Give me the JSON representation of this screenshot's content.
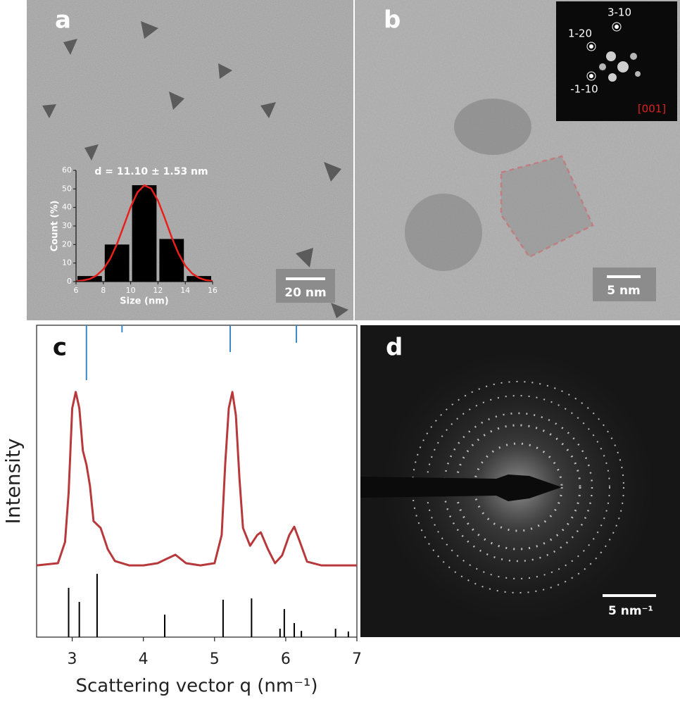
{
  "panels": {
    "a": {
      "label": "a",
      "scale_bar": "20 nm"
    },
    "b": {
      "label": "b",
      "scale_bar": "5 nm",
      "fft_labels": [
        "3-10",
        "1-20",
        "-1-10"
      ],
      "zone_axis": "[001]"
    },
    "c": {
      "label": "c"
    },
    "d": {
      "label": "d",
      "scale_bar": "5 nm⁻¹"
    }
  },
  "chart_data": [
    {
      "type": "histogram",
      "title": "d = 11.10 ± 1.53 nm",
      "x_label": "Size (nm)",
      "y_label": "Count (%)",
      "bins": [
        6,
        8,
        10,
        12,
        14,
        16
      ],
      "values": [
        3,
        20,
        52,
        23,
        3
      ],
      "color": "#000000",
      "xlim": [
        6,
        16
      ],
      "xticks": [
        6,
        8,
        10,
        12,
        14,
        16
      ],
      "ylim": [
        0,
        60
      ],
      "yticks": [
        0,
        10,
        20,
        30,
        40,
        50,
        60
      ],
      "fit": {
        "color": "#e8201c",
        "x": [
          6,
          6.5,
          7,
          7.5,
          8,
          8.5,
          9,
          9.5,
          10,
          10.5,
          11,
          11.5,
          12,
          12.5,
          13,
          13.5,
          14,
          14.5,
          15,
          15.5,
          16
        ],
        "values": [
          0.2,
          0.6,
          1.4,
          3.3,
          6.7,
          12.3,
          20.3,
          30.1,
          40.2,
          48.2,
          51.9,
          50.2,
          43.7,
          34.2,
          24.0,
          15.2,
          8.6,
          4.4,
          2.0,
          0.8,
          0.3
        ]
      }
    },
    {
      "type": "line",
      "x_label": "Scattering vector q (nm⁻¹)",
      "y_label": "Intensity",
      "xlim": [
        2.5,
        7
      ],
      "xticks": [
        3,
        4,
        5,
        6,
        7
      ],
      "ylim": [
        0,
        100
      ],
      "series": [
        {
          "color": "#b8393b",
          "x": [
            2.5,
            2.8,
            2.9,
            2.95,
            3.0,
            3.05,
            3.1,
            3.15,
            3.2,
            3.25,
            3.3,
            3.4,
            3.5,
            3.6,
            3.8,
            4.0,
            4.2,
            4.3,
            4.45,
            4.6,
            4.8,
            5.0,
            5.1,
            5.15,
            5.2,
            5.25,
            5.3,
            5.35,
            5.4,
            5.5,
            5.6,
            5.65,
            5.75,
            5.85,
            5.95,
            6.05,
            6.12,
            6.2,
            6.3,
            6.5,
            7.0
          ],
          "values": [
            23.0,
            23.7,
            30.5,
            46.3,
            73.4,
            78.6,
            73.4,
            59.8,
            55.3,
            48.5,
            37.2,
            35.0,
            28.2,
            24.4,
            23.0,
            23.0,
            23.7,
            24.8,
            26.4,
            23.7,
            23.0,
            23.7,
            32.7,
            55.3,
            73.4,
            78.6,
            71.1,
            50.8,
            35.0,
            29.3,
            32.7,
            33.6,
            28.2,
            23.7,
            26.2,
            32.7,
            35.4,
            30.5,
            24.2,
            23.0,
            23.0
          ]
        }
      ],
      "sticks": [
        {
          "color": "#000000",
          "from": "bottom",
          "x": [
            2.95,
            3.1,
            3.35,
            4.3,
            5.12,
            5.52,
            5.92,
            5.98,
            6.12,
            6.22,
            6.7,
            6.88
          ],
          "values": [
            15.8,
            11.3,
            20.3,
            7.2,
            12.0,
            12.4,
            2.7,
            9.0,
            4.5,
            2.0,
            2.7,
            1.8
          ]
        },
        {
          "color": "#3a87c8",
          "from": "top",
          "x": [
            3.2,
            3.7,
            5.22,
            6.15
          ],
          "values": [
            82.4,
            97.7,
            91.4,
            94.4
          ]
        }
      ]
    }
  ]
}
